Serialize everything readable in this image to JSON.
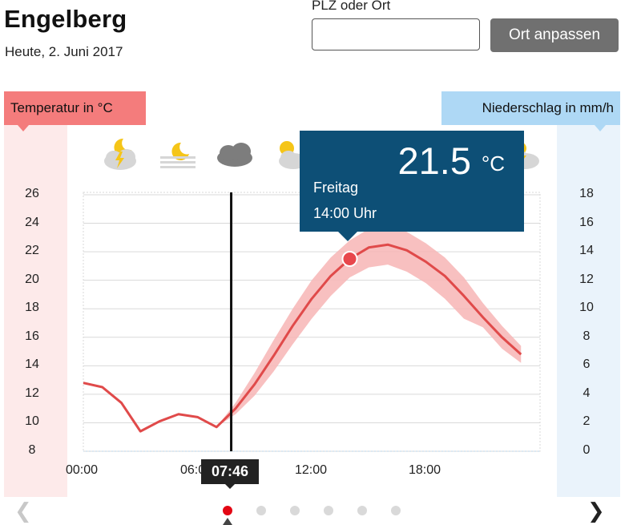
{
  "header": {
    "title": "Engelberg",
    "date": "Heute, 2. Juni 2017",
    "search_label": "PLZ oder Ort",
    "search_value": "",
    "search_button": "Ort anpassen"
  },
  "chart_labels": {
    "temp_axis_title": "Temperatur in °C",
    "rain_axis_title": "Niederschlag in mm/h",
    "current_time": "07:46"
  },
  "tooltip": {
    "value": "21.5",
    "unit": "°C",
    "day": "Freitag",
    "time": "14:00 Uhr"
  },
  "weather_icons": [
    "thunderstorm-night-icon",
    "fog-moon-icon",
    "cloudy-icon",
    "sun-behind-cloud-icon",
    "thunderstorm-day-icon"
  ],
  "colors": {
    "temperature_line": "#e04a4a",
    "temperature_band": "#f7b5b5",
    "tooltip_bg": "#0d4f76",
    "temp_tag": "#f47c7c",
    "rain_tag": "#aed8f5",
    "button_bg": "#707070",
    "active_dot": "#e30613"
  },
  "pager": {
    "prev_icon": "chevron-left-icon",
    "next_icon": "chevron-right-icon",
    "pages": 6,
    "active_page": 0
  },
  "chart_data": {
    "type": "line",
    "x_ticks": [
      "00:00",
      "06:00",
      "12:00",
      "18:00"
    ],
    "y_ticks": [
      8,
      10,
      12,
      14,
      16,
      18,
      20,
      22,
      24,
      26
    ],
    "y2_ticks": [
      0,
      2,
      4,
      6,
      8,
      10,
      12,
      14,
      16,
      18
    ],
    "ylim": [
      8,
      26
    ],
    "y2lim": [
      0,
      18
    ],
    "xlim_hours": [
      0,
      24
    ],
    "series": [
      {
        "name": "Temperatur in °C",
        "x": [
          0,
          1,
          2,
          3,
          4,
          5,
          6,
          7,
          8,
          9,
          10,
          11,
          12,
          13,
          14,
          15,
          16,
          17,
          18,
          19,
          20,
          21,
          22,
          23
        ],
        "values": [
          12.8,
          12.5,
          11.4,
          9.4,
          10.1,
          10.6,
          10.4,
          9.7,
          11.0,
          12.7,
          14.7,
          16.8,
          18.7,
          20.3,
          21.5,
          22.3,
          22.5,
          22.1,
          21.3,
          20.3,
          18.9,
          17.4,
          16.0,
          14.8
        ],
        "band_low": [
          12.8,
          12.5,
          11.4,
          9.4,
          10.1,
          10.6,
          10.4,
          9.7,
          10.6,
          11.9,
          13.6,
          15.5,
          17.3,
          18.9,
          20.2,
          20.9,
          21.1,
          20.6,
          19.8,
          18.7,
          17.3,
          16.7,
          15.2,
          14.2
        ],
        "band_high": [
          12.8,
          12.5,
          11.4,
          9.4,
          10.1,
          10.6,
          10.4,
          9.7,
          11.4,
          13.5,
          15.8,
          18.0,
          20.0,
          21.6,
          22.8,
          23.6,
          23.8,
          23.4,
          22.6,
          21.6,
          20.2,
          18.4,
          16.8,
          15.4
        ]
      }
    ],
    "highlight": {
      "x": 14,
      "y": 21.5
    },
    "current_time_hours": 7.77,
    "grid": true,
    "legend": "none"
  }
}
